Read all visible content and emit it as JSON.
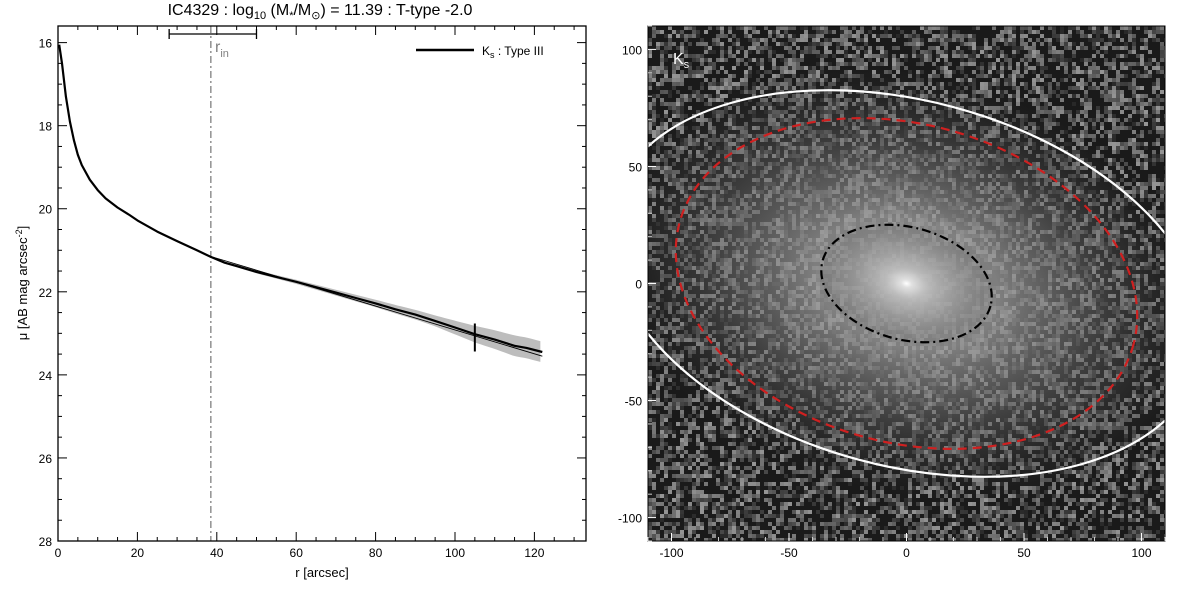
{
  "title": {
    "prefix": "IC4329 : log",
    "sub": "10",
    "mid1": " (M",
    "star_sub": "*",
    "mid2": "/M",
    "sun_sub": "⊙",
    "suffix": ") = 11.39 : T-type -2.0"
  },
  "colors": {
    "profile": "#000000",
    "band": "#bdbdbd",
    "rin_line": "#808080",
    "ellipse_white": "#ffffff",
    "ellipse_red": "#d02020",
    "ellipse_black": "#000000",
    "image_bg": "#1a1a1a"
  },
  "chart_data": [
    {
      "type": "line",
      "panel": "surface-brightness-profile",
      "xlabel": "r [arcsec]",
      "ylabel": {
        "text": "μ [AB mag arcsec",
        "sup": "-2",
        "end": "]"
      },
      "xlim": [
        0,
        133
      ],
      "ylim": [
        28,
        15.6
      ],
      "y_inverted": true,
      "xticks": [
        0,
        20,
        40,
        60,
        80,
        100,
        120
      ],
      "yticks": [
        16,
        18,
        20,
        22,
        24,
        26,
        28
      ],
      "legend": {
        "label_main": "K",
        "label_sub": "s",
        "label_rest": " : Type III",
        "placement": "top-right"
      },
      "r_in": {
        "label_main": "r",
        "label_sub": "in",
        "value": 38.5,
        "error_low": 28,
        "error_high": 50
      },
      "end_marker": {
        "x": 105,
        "y": 23.1
      },
      "series": [
        {
          "name": "profile",
          "x": [
            0.3,
            1,
            2,
            3,
            4,
            5,
            6,
            8,
            10,
            12,
            15,
            18,
            20,
            25,
            30,
            35,
            38.5,
            42,
            45,
            50,
            55,
            60,
            65,
            70,
            75,
            80,
            85,
            90,
            95,
            100,
            105,
            110,
            115,
            118,
            122
          ],
          "y": [
            16.05,
            16.5,
            17.3,
            17.9,
            18.35,
            18.7,
            18.95,
            19.3,
            19.55,
            19.75,
            19.97,
            20.15,
            20.28,
            20.55,
            20.78,
            21.0,
            21.16,
            21.3,
            21.38,
            21.52,
            21.64,
            21.76,
            21.89,
            22.02,
            22.15,
            22.28,
            22.42,
            22.55,
            22.7,
            22.86,
            23.02,
            23.15,
            23.3,
            23.35,
            23.45
          ]
        },
        {
          "name": "outer-fit",
          "x": [
            38.5,
            122
          ],
          "y": [
            21.15,
            23.55
          ]
        }
      ],
      "band_halfwidth": {
        "x": [
          38.5,
          60,
          80,
          95,
          105,
          115,
          122
        ],
        "dy": [
          0.02,
          0.05,
          0.09,
          0.13,
          0.2,
          0.25,
          0.25
        ]
      }
    },
    {
      "type": "image",
      "panel": "ks-band-image",
      "label_main": "K",
      "label_sub": "s",
      "xlim": [
        -110,
        110
      ],
      "ylim": [
        -110,
        110
      ],
      "xticks": [
        -100,
        -50,
        0,
        50,
        100
      ],
      "yticks": [
        -100,
        -50,
        0,
        50,
        100
      ],
      "ellipses": [
        {
          "style": "dash-dot",
          "color": "black",
          "cx": 0,
          "cy": 0,
          "a": 37,
          "b": 24,
          "pa_deg": 15
        },
        {
          "style": "dashed",
          "color": "red",
          "cx": 0,
          "cy": 0,
          "a": 100,
          "b": 68,
          "pa_deg": 15
        },
        {
          "style": "solid",
          "color": "white",
          "cx": 0,
          "cy": 0,
          "a": 130,
          "b": 78,
          "pa_deg": 15
        }
      ]
    }
  ]
}
